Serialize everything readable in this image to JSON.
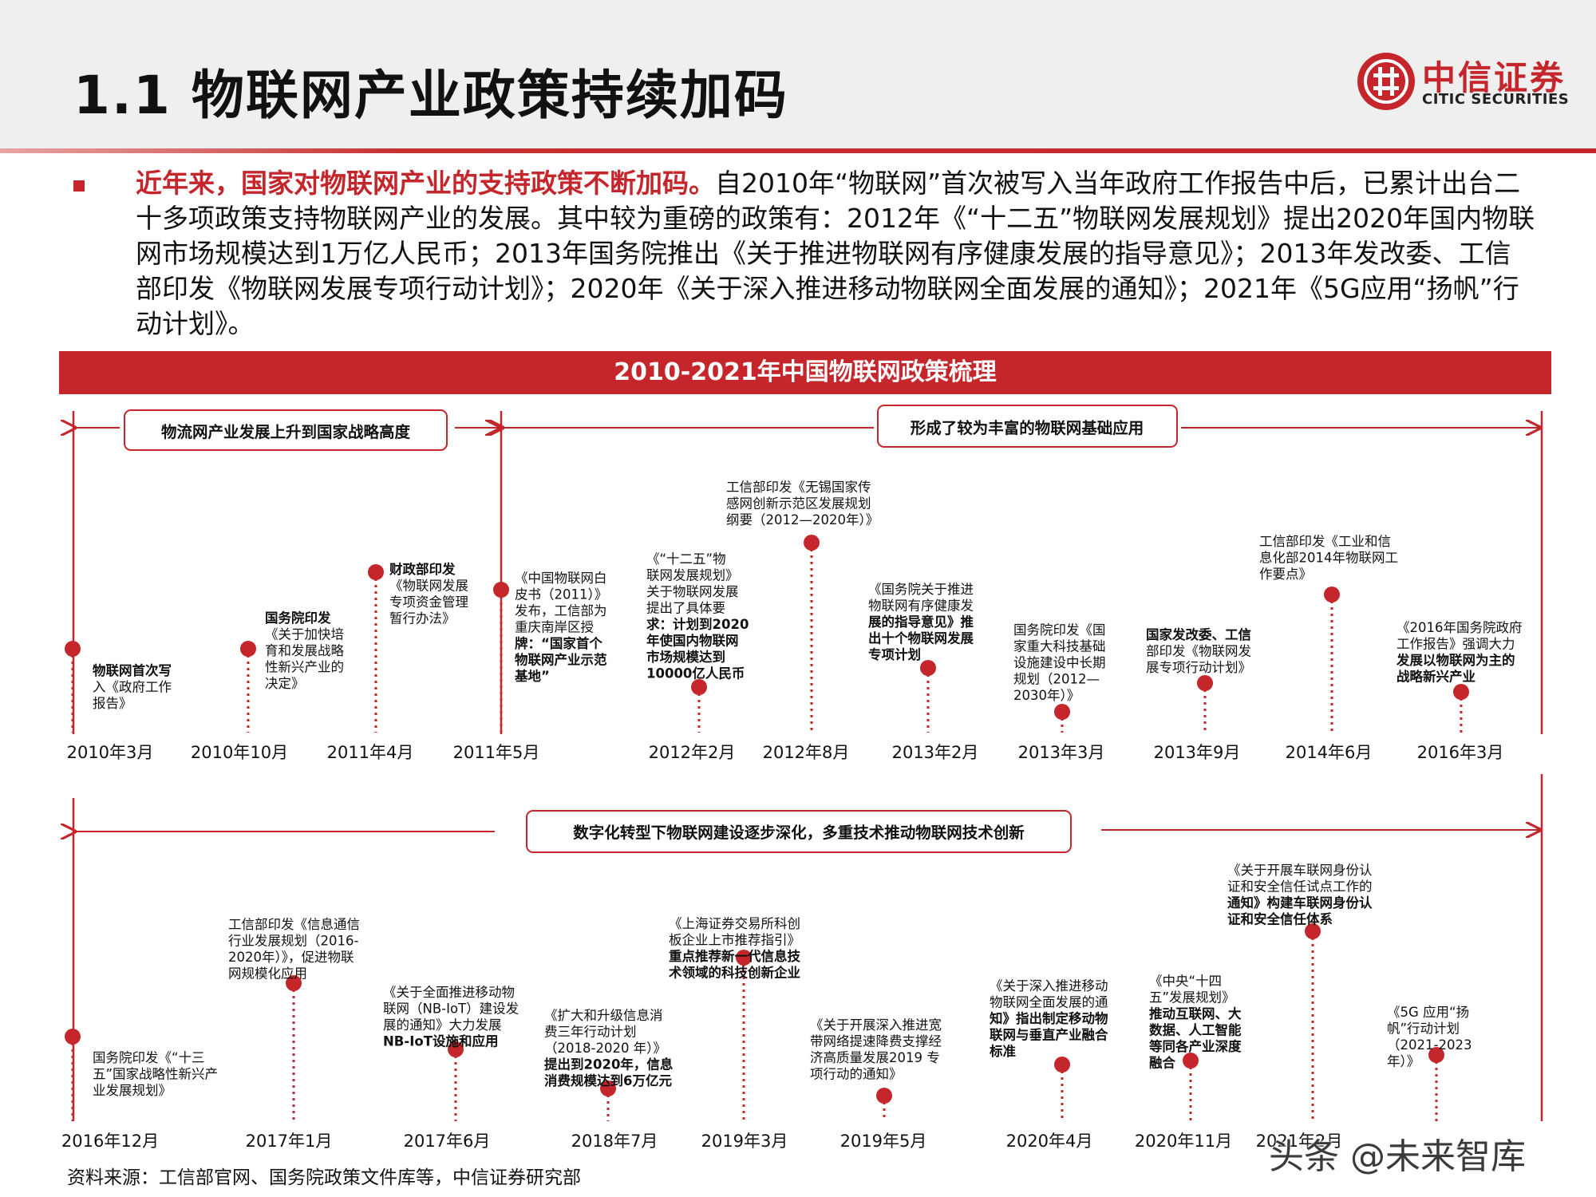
{
  "header": {
    "title": "1.1 物联网产业政策持续加码",
    "logo": {
      "cn": "中信证券",
      "en": "CITIC SECURITIES"
    }
  },
  "intro": {
    "highlight": "近年来，国家对物联网产业的支持政策不断加码。",
    "body": "自2010年“物联网”首次被写入当年政府工作报告中后，已累计出台二十多项政策支持物联网产业的发展。其中较为重磅的政策有：2012年《“十二五”物联网发展规划》提出2020年国内物联网市场规模达到1万亿人民币；2013年国务院推出《关于推进物联网有序健康发展的指导意见》；2013年发改委、工信部印发《物联网发展专项行动计划》；2020年《关于深入推进移动物联网全面发展的通知》；2021年《5G应用“扬帆”行动计划》。"
  },
  "timeline": {
    "title": "2010-2021年中国物联网政策梳理",
    "phases": [
      "物流网产业发展上升到国家战略高度",
      "形成了较为丰富的物联网基础应用",
      "数字化转型下物联网建设逐步深化，多重技术推动物联网技术创新"
    ],
    "row1": [
      {
        "date": "2010年3月",
        "text": [
          {
            "t": "物联网首次写",
            "b": true
          },
          {
            "t": "入《政府工作"
          },
          {
            "t": "报告》"
          }
        ]
      },
      {
        "date": "2010年10月",
        "text": [
          {
            "t": "国务院印发",
            "b": true
          },
          {
            "t": "《关于加快培"
          },
          {
            "t": "育和发展战略"
          },
          {
            "t": "性新兴产业的"
          },
          {
            "t": "决定》"
          }
        ]
      },
      {
        "date": "2011年4月",
        "text": [
          {
            "t": "财政部印发",
            "b": true
          },
          {
            "t": "《物联网发展"
          },
          {
            "t": "专项资金管理"
          },
          {
            "t": "暂行办法》"
          }
        ]
      },
      {
        "date": "2011年5月",
        "text": [
          {
            "t": "《中国物联网白"
          },
          {
            "t": "皮书（2011）》"
          },
          {
            "t": "发布，工信部为"
          },
          {
            "t": "重庆南岸区授"
          },
          {
            "t": "牌：“国家首个",
            "b": true
          },
          {
            "t": "物联网产业示范",
            "b": true
          },
          {
            "t": "基地”",
            "b": true
          }
        ]
      },
      {
        "date": "2012年2月",
        "text": [
          {
            "t": "《“十二五”物"
          },
          {
            "t": "联网发展规划》"
          },
          {
            "t": "关于物联网发展"
          },
          {
            "t": "提出了具体要"
          },
          {
            "t": "求：计划到2020",
            "b": true
          },
          {
            "t": "年使国内物联网",
            "b": true
          },
          {
            "t": "市场规模达到",
            "b": true
          },
          {
            "t": "10000亿人民币",
            "b": true
          }
        ]
      },
      {
        "date": "2012年8月",
        "text": [
          {
            "t": "工信部印发《无锡国家传"
          },
          {
            "t": "感网创新示范区发展规划"
          },
          {
            "t": "纲要（2012—2020年）》"
          }
        ]
      },
      {
        "date": "2013年2月",
        "text": [
          {
            "t": "《国务院关于推进"
          },
          {
            "t": "物联网有序健康发"
          },
          {
            "t": "展的指导意见》推",
            "b": true
          },
          {
            "t": "出十个物联网发展",
            "b": true
          },
          {
            "t": "专项计划",
            "b": true
          }
        ]
      },
      {
        "date": "2013年3月",
        "text": [
          {
            "t": "国务院印发《国"
          },
          {
            "t": "家重大科技基础"
          },
          {
            "t": "设施建设中长期"
          },
          {
            "t": "规划（2012—"
          },
          {
            "t": "2030年）》"
          }
        ]
      },
      {
        "date": "2013年9月",
        "text": [
          {
            "t": "国家发改委、工信",
            "b": true
          },
          {
            "t": "部印发《物联网发"
          },
          {
            "t": "展专项行动计划》"
          }
        ]
      },
      {
        "date": "2014年6月",
        "text": [
          {
            "t": "工信部印发《工业和信"
          },
          {
            "t": "息化部2014年物联网工"
          },
          {
            "t": "作要点》"
          }
        ]
      },
      {
        "date": "2016年3月",
        "text": [
          {
            "t": "《2016年国务院政府"
          },
          {
            "t": "工作报告》强调大力"
          },
          {
            "t": "发展以物联网为主的",
            "b": true
          },
          {
            "t": "战略新兴产业",
            "b": true
          }
        ]
      }
    ],
    "row2": [
      {
        "date": "2016年12月",
        "text": [
          {
            "t": "国务院印发《“十三"
          },
          {
            "t": "五”国家战略性新兴产"
          },
          {
            "t": "业发展规划》"
          }
        ]
      },
      {
        "date": "2017年1月",
        "text": [
          {
            "t": "工信部印发《信息通信"
          },
          {
            "t": "行业发展规划（2016-"
          },
          {
            "t": "2020年）》，促进物联"
          },
          {
            "t": "网规模化应用"
          }
        ]
      },
      {
        "date": "2017年6月",
        "text": [
          {
            "t": "《关于全面推进移动物"
          },
          {
            "t": "联网（NB-IoT）建设发"
          },
          {
            "t": "展的通知》大力发展"
          },
          {
            "t": "NB-IoT设施和应用",
            "b": true
          }
        ]
      },
      {
        "date": "2018年7月",
        "text": [
          {
            "t": "《扩大和升级信息消"
          },
          {
            "t": "费三年行动计划"
          },
          {
            "t": "（2018-2020 年）》"
          },
          {
            "t": "提出到2020年，信息",
            "b": true
          },
          {
            "t": "消费规模达到6万亿元",
            "b": true
          }
        ]
      },
      {
        "date": "2019年3月",
        "text": [
          {
            "t": "《上海证券交易所科创"
          },
          {
            "t": "板企业上市推荐指引》"
          },
          {
            "t": "重点推荐新一代信息技",
            "b": true
          },
          {
            "t": "术领域的科技创新企业",
            "b": true
          }
        ]
      },
      {
        "date": "2019年5月",
        "text": [
          {
            "t": "《关于开展深入推进宽"
          },
          {
            "t": "带网络提速降费支撑经"
          },
          {
            "t": "济高质量发展2019 专"
          },
          {
            "t": "项行动的通知》"
          }
        ]
      },
      {
        "date": "2020年4月",
        "text": [
          {
            "t": "《关于深入推进移动"
          },
          {
            "t": "物联网全面发展的通"
          },
          {
            "t": "知》指出制定移动物",
            "b": true
          },
          {
            "t": "联网与垂直产业融合",
            "b": true
          },
          {
            "t": "标准",
            "b": true
          }
        ]
      },
      {
        "date": "2020年11月",
        "text": [
          {
            "t": "《中央“十四"
          },
          {
            "t": "五”发展规划》"
          },
          {
            "t": "推动互联网、大",
            "b": true
          },
          {
            "t": "数据、人工智能",
            "b": true
          },
          {
            "t": "等同各产业深度",
            "b": true
          },
          {
            "t": "融合",
            "b": true
          }
        ]
      },
      {
        "date": "2021年2月",
        "text": [
          {
            "t": "《关于开展车联网身份认"
          },
          {
            "t": "证和安全信任试点工作的"
          },
          {
            "t": "通知》构建车联网身份认",
            "b": true
          },
          {
            "t": "证和安全信任体系",
            "b": true
          }
        ]
      },
      {
        "date": "",
        "text": [
          {
            "t": "《5G 应用“扬"
          },
          {
            "t": "帆”行动计划"
          },
          {
            "t": "（2021-2023"
          },
          {
            "t": "年）》"
          }
        ]
      }
    ]
  },
  "source": "资料来源：工信部官网、国务院政策文件库等，中信证券研究部",
  "watermark": "头条 @未来智库",
  "colors": {
    "accent": "#c4262b",
    "header_bg": "#efefef"
  }
}
